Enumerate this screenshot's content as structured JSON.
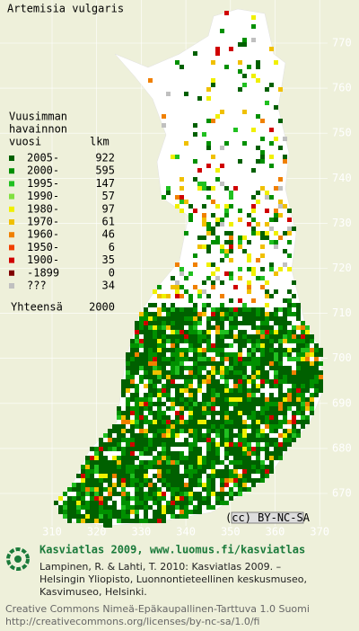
{
  "title": "Artemisia vulgaris",
  "legend": {
    "heading": [
      "Vuusimman",
      "havainnon",
      "vuosi"
    ],
    "count_heading": "lkm",
    "entries": [
      {
        "period": "2005-",
        "count": "922",
        "color": "#006000"
      },
      {
        "period": "2000-",
        "count": "595",
        "color": "#009000"
      },
      {
        "period": "1995-",
        "count": "147",
        "color": "#20c020"
      },
      {
        "period": "1990-",
        "count": "57",
        "color": "#80e040"
      },
      {
        "period": "1980-",
        "count": "97",
        "color": "#f0f000"
      },
      {
        "period": "1970-",
        "count": "61",
        "color": "#f0c000"
      },
      {
        "period": "1960-",
        "count": "46",
        "color": "#f08000"
      },
      {
        "period": "1950-",
        "count": "6",
        "color": "#f04000"
      },
      {
        "period": "1900-",
        "count": "35",
        "color": "#d00000"
      },
      {
        "period": "-1899",
        "count": "0",
        "color": "#800000"
      },
      {
        "period": "???",
        "count": "34",
        "color": "#c0c0c0"
      }
    ],
    "total_label": "Yhteensä",
    "total": "2000"
  },
  "grid": {
    "northings": [
      "770",
      "760",
      "750",
      "740",
      "730",
      "720",
      "710",
      "700",
      "690",
      "680",
      "670"
    ],
    "eastings": [
      "310",
      "320",
      "330",
      "340",
      "350",
      "360",
      "370"
    ]
  },
  "license_badge": "(cc) BY-NC-SA",
  "footer": {
    "site": "Kasviatlas 2009, www.luomus.fi/kasviatlas",
    "citation": [
      "Lampinen, R. & Lahti, T. 2010: Kasviatlas 2009. –",
      "Helsingin Yliopisto, Luonnontieteellinen keskusmuseo,",
      "Kasvimuseo, Helsinki."
    ],
    "license": [
      "Creative Commons Nimeä-Epäkaupallinen-Tarttuva 1.0 Suomi",
      "http://creativecommons.org/licenses/by-nc-sa/1.0/fi"
    ]
  }
}
